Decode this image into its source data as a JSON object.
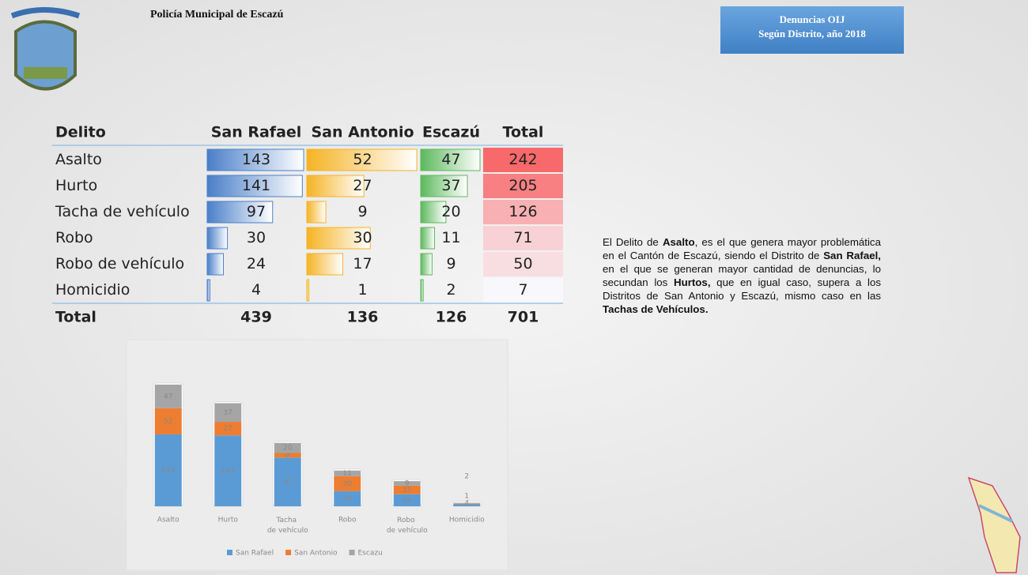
{
  "header": {
    "title": "Policía Municipal de Escazú",
    "box_line1": "Denuncias OIJ",
    "box_line2": "Según Distrito, año 2018"
  },
  "table": {
    "headers": [
      "Delito",
      "San Rafael",
      "San Antonio",
      "Escazú",
      "Total"
    ],
    "rows": [
      [
        "Asalto",
        143,
        52,
        47,
        242
      ],
      [
        "Hurto",
        141,
        27,
        37,
        205
      ],
      [
        "Tacha de vehículo",
        97,
        9,
        20,
        126
      ],
      [
        "Robo",
        30,
        30,
        11,
        71
      ],
      [
        "Robo de vehículo",
        24,
        17,
        9,
        50
      ],
      [
        "Homicidio",
        4,
        1,
        2,
        7
      ]
    ],
    "total_row": [
      "Total",
      439,
      136,
      126,
      701
    ]
  },
  "paragraph": [
    {
      "text": "El Delito de "
    },
    {
      "text": "Asalto",
      "bold": true
    },
    {
      "text": ", es el que genera mayor problemática en el Cantón de Escazú, siendo el Distrito de "
    },
    {
      "text": "San Rafael,",
      "bold": true
    },
    {
      "text": " en el que se generan mayor cantidad de denuncias, lo secundan los "
    },
    {
      "text": "Hurtos,",
      "bold": true
    },
    {
      "text": " que en igual caso, supera a los Distritos de San Antonio y Escazú, mismo caso en las "
    },
    {
      "text": "Tachas de Vehículos.",
      "bold": true
    }
  ],
  "chart_data": {
    "type": "stacked_bar",
    "categories": [
      "Asalto",
      "Hurto",
      "Tacha de vehículo",
      "Robo",
      "Robo de vehículo",
      "Homicidio"
    ],
    "series": [
      {
        "name": "San Rafael",
        "color": "#5b9bd5",
        "values": [
          143,
          141,
          97,
          30,
          24,
          4
        ]
      },
      {
        "name": "San Antonio",
        "color": "#ed7d31",
        "values": [
          52,
          27,
          9,
          30,
          17,
          1
        ]
      },
      {
        "name": "Escazu",
        "color": "#a5a5a5",
        "values": [
          47,
          37,
          20,
          11,
          9,
          2
        ]
      }
    ],
    "ylim": [
      0,
      300
    ],
    "legend": "bottom"
  }
}
